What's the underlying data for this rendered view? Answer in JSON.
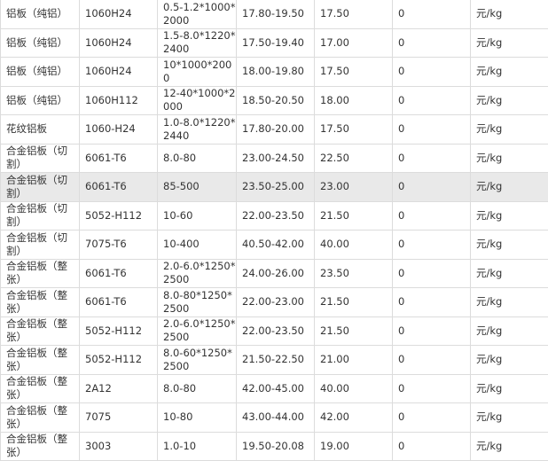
{
  "table": {
    "rows": [
      [
        "铝板（纯铝）",
        "1060H24",
        "0.5-1.2*1000*2000",
        "17.80-19.50",
        "17.50",
        "0",
        "元/kg"
      ],
      [
        "铝板（纯铝）",
        "1060H24",
        "1.5-8.0*1220*2400",
        "17.50-19.40",
        "17.00",
        "0",
        "元/kg"
      ],
      [
        "铝板（纯铝）",
        "1060H24",
        "10*1000*2000",
        "18.00-19.80",
        "17.50",
        "0",
        "元/kg"
      ],
      [
        "铝板（纯铝）",
        "1060H112",
        "12-40*1000*2000",
        "18.50-20.50",
        "18.00",
        "0",
        "元/kg"
      ],
      [
        "花纹铝板",
        "1060-H24",
        "1.0-8.0*1220*2440",
        "17.80-20.00",
        "17.50",
        "0",
        "元/kg"
      ],
      [
        "合金铝板（切割）",
        "6061-T6",
        "8.0-80",
        "23.00-24.50",
        "22.50",
        "0",
        "元/kg"
      ],
      [
        "合金铝板（切割）",
        "6061-T6",
        "85-500",
        "23.50-25.00",
        "23.00",
        "0",
        "元/kg"
      ],
      [
        "合金铝板（切割）",
        "5052-H112",
        "10-60",
        "22.00-23.50",
        "21.50",
        "0",
        "元/kg"
      ],
      [
        "合金铝板（切割）",
        "7075-T6",
        "10-400",
        "40.50-42.00",
        "40.00",
        "0",
        "元/kg"
      ],
      [
        "合金铝板（整张）",
        "6061-T6",
        "2.0-6.0*1250*2500",
        "24.00-26.00",
        "23.50",
        "0",
        "元/kg"
      ],
      [
        "合金铝板（整张）",
        "6061-T6",
        "8.0-80*1250*2500",
        "22.00-23.00",
        "21.50",
        "0",
        "元/kg"
      ],
      [
        "合金铝板（整张）",
        "5052-H112",
        "2.0-6.0*1250*2500",
        "22.00-23.50",
        "21.50",
        "0",
        "元/kg"
      ],
      [
        "合金铝板（整张）",
        "5052-H112",
        "8.0-60*1250*2500",
        "21.50-22.50",
        "21.00",
        "0",
        "元/kg"
      ],
      [
        "合金铝板（整张）",
        "2A12",
        "8.0-80",
        "42.00-45.00",
        "40.00",
        "0",
        "元/kg"
      ],
      [
        "合金铝板（整张）",
        "7075",
        "10-80",
        "43.00-44.00",
        "42.00",
        "0",
        "元/kg"
      ],
      [
        "合金铝板（整张）",
        "3003",
        "1.0-10",
        "19.50-20.08",
        "19.00",
        "0",
        "元/kg"
      ]
    ]
  }
}
